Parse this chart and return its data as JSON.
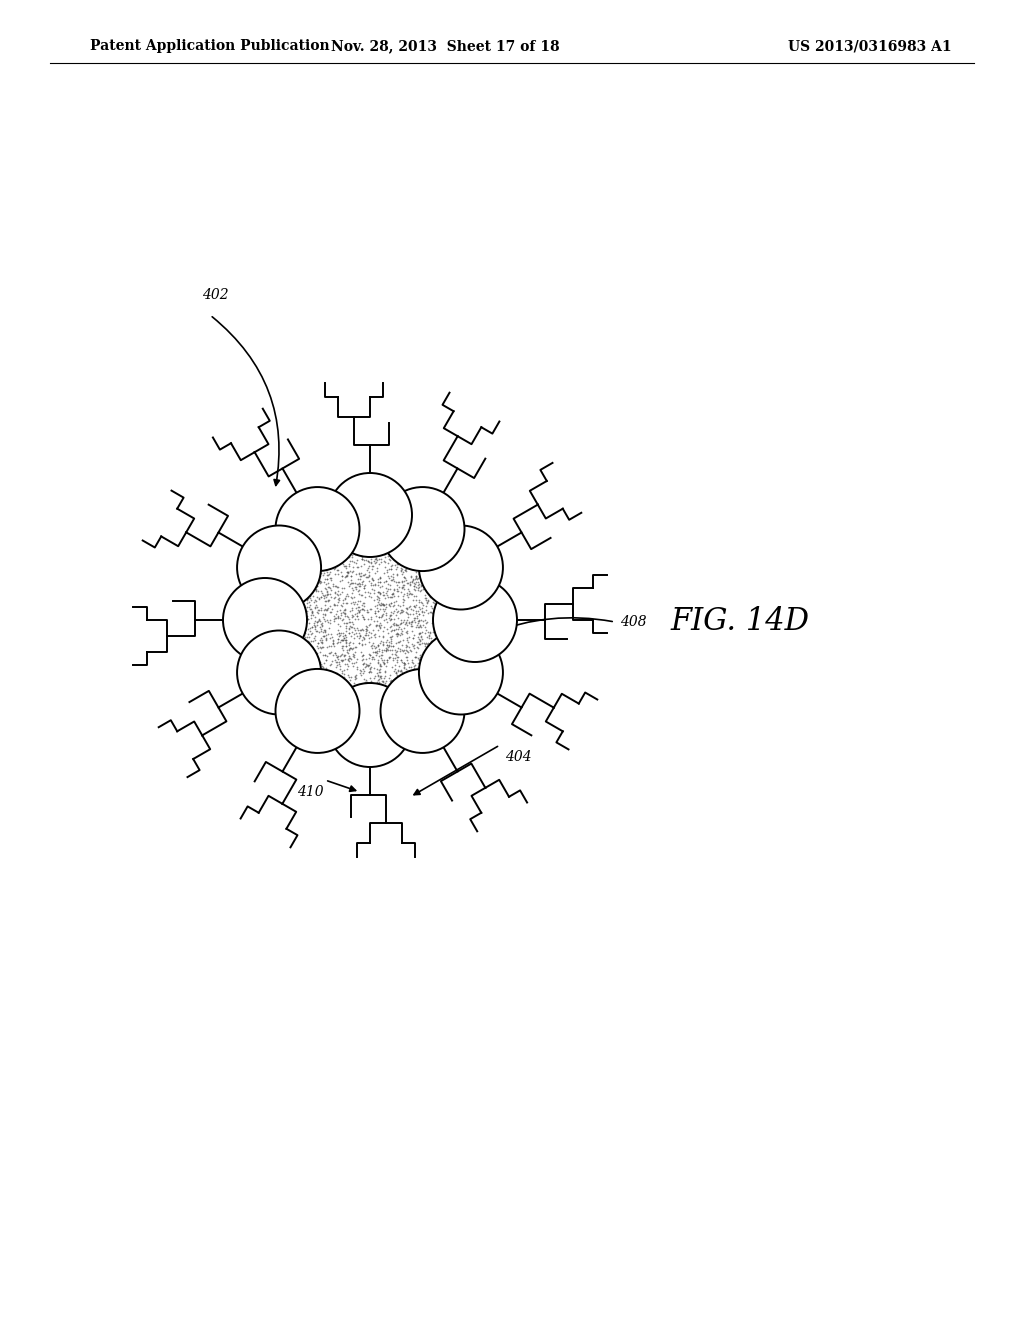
{
  "header_left": "Patent Application Publication",
  "header_mid": "Nov. 28, 2013  Sheet 17 of 18",
  "header_right": "US 2013/0316983 A1",
  "fig_label": "FIG. 14D",
  "label_402": "402",
  "label_408": "408",
  "label_404": "404",
  "label_410": "410",
  "bg_color": "#ffffff",
  "line_color": "#000000",
  "core_dot_color": "#555555"
}
